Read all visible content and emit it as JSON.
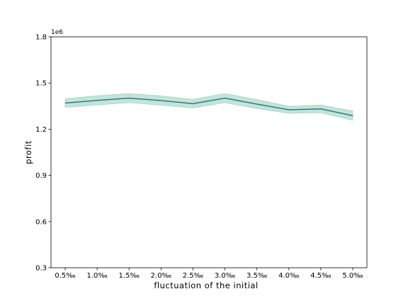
{
  "chart_data": {
    "type": "line",
    "title": "",
    "xlabel": "fluctuation of the initial",
    "ylabel": "profit",
    "y_offset_label": "1e6",
    "categories": [
      "0.5‰",
      "1.0‰",
      "1.5‰",
      "2.0‰",
      "2.5‰",
      "3.0‰",
      "3.5‰",
      "4.0‰",
      "4.5‰",
      "5.0‰"
    ],
    "series": [
      {
        "values": [
          1.37,
          1.387,
          1.402,
          1.386,
          1.366,
          1.402,
          1.363,
          1.326,
          1.332,
          1.288
        ],
        "ci_lower": [
          1.342,
          1.357,
          1.372,
          1.356,
          1.338,
          1.372,
          1.334,
          1.303,
          1.307,
          1.258
        ],
        "ci_upper": [
          1.398,
          1.417,
          1.432,
          1.416,
          1.394,
          1.432,
          1.392,
          1.349,
          1.357,
          1.318
        ],
        "line_color": "#2a7b8e",
        "band_color": "#7cc4a6"
      }
    ],
    "ylim": [
      0.3,
      1.8
    ],
    "yticks": [
      "0.3",
      "0.6",
      "0.9",
      "1.2",
      "1.5",
      "1.8"
    ],
    "ytick_values": [
      0.3,
      0.6,
      0.9,
      1.2,
      1.5,
      1.8
    ],
    "grid": false,
    "legend": "none"
  }
}
